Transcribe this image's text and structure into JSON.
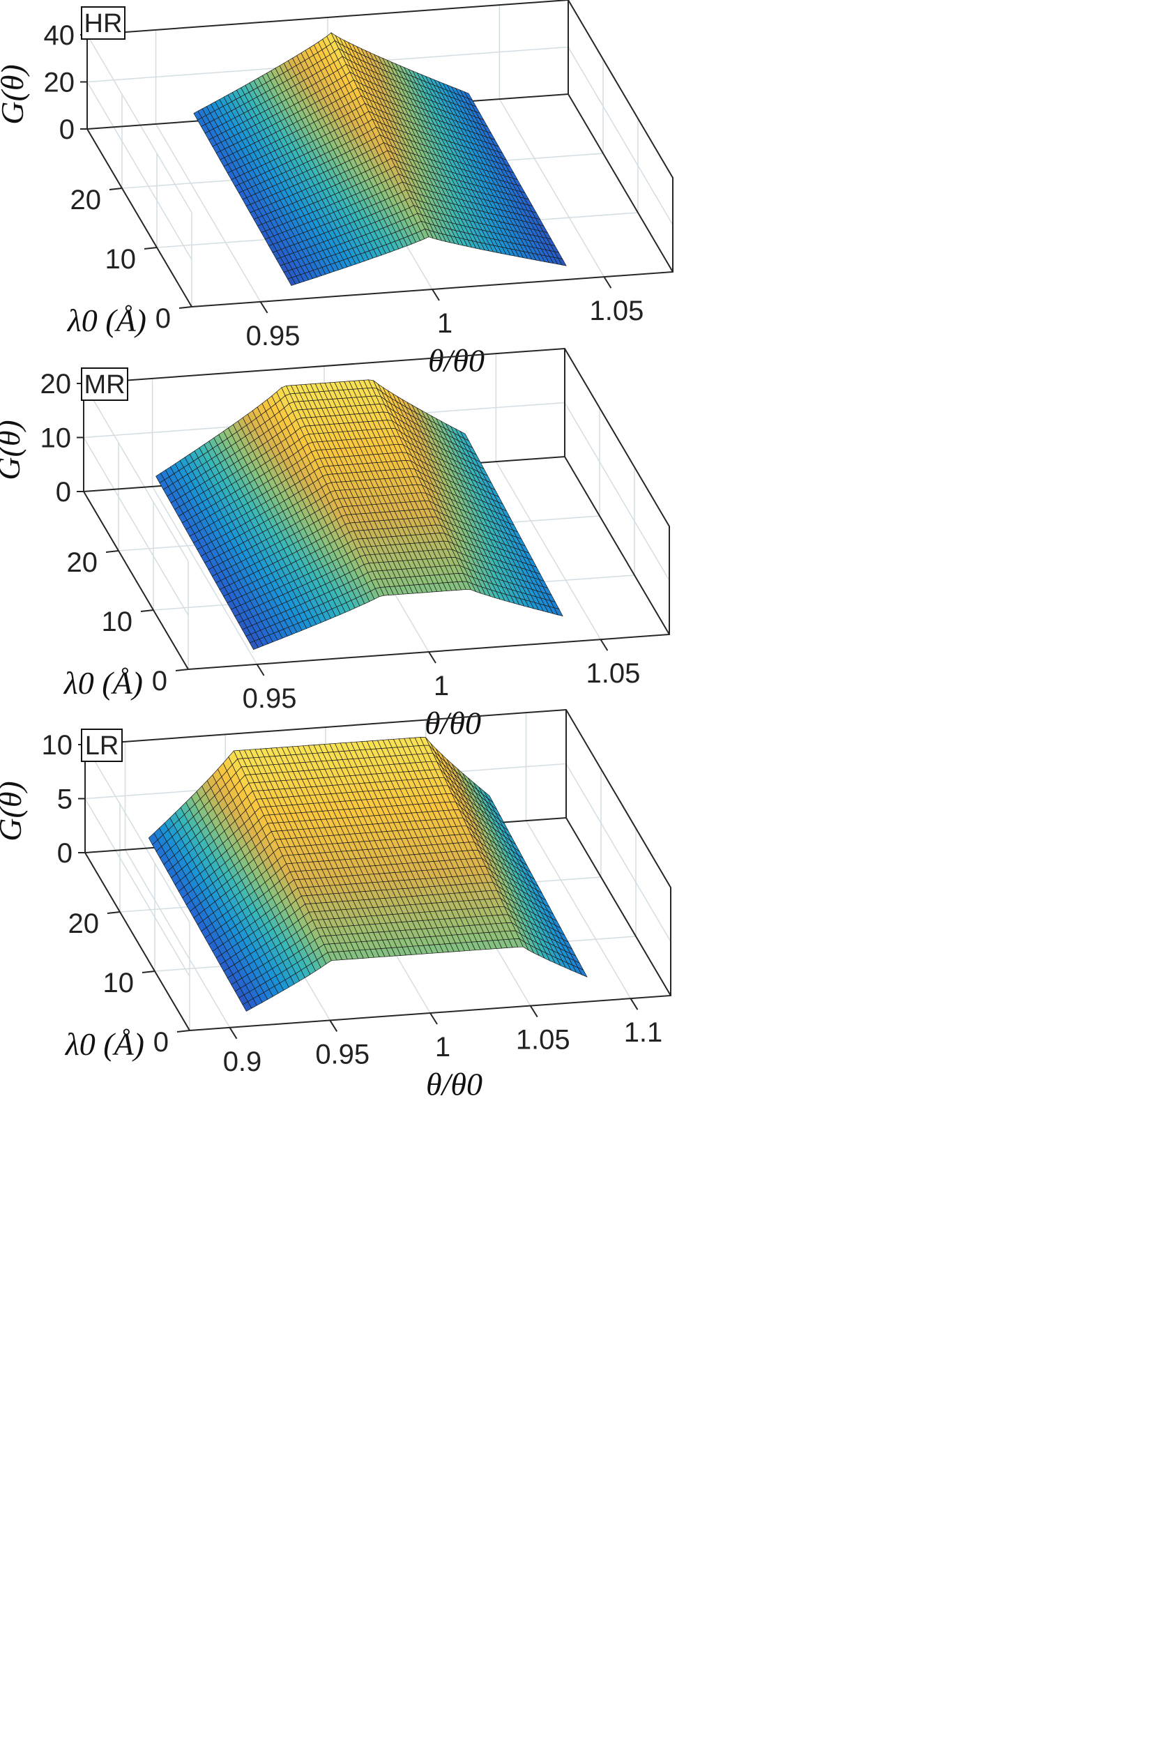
{
  "chart_data": [
    {
      "type": "surface3d",
      "panel_label": "HR",
      "xlabel": "θ/θ0",
      "ylabel": "λ0 (Å)",
      "zlabel": "G(θ)",
      "x_ticks": [
        "0.95",
        "1",
        "1.05"
      ],
      "x_tick_values": [
        0.95,
        1.0,
        1.05
      ],
      "y_ticks": [
        "0",
        "10",
        "20"
      ],
      "y_tick_values": [
        0,
        10,
        20
      ],
      "z_ticks": [
        "0",
        "20",
        "40"
      ],
      "z_tick_values": [
        0,
        20,
        40
      ],
      "xlim": [
        0.93,
        1.07
      ],
      "ylim": [
        0,
        30
      ],
      "zlim": [
        0,
        40
      ],
      "surface": {
        "x_range": [
          0.96,
          1.04
        ],
        "y_range": [
          1,
          29
        ],
        "flat_top_halfwidth": 0.0,
        "z_peak": 36,
        "z_edge": 6
      }
    },
    {
      "type": "surface3d",
      "panel_label": "MR",
      "xlabel": "θ/θ0",
      "ylabel": "λ0 (Å)",
      "zlabel": "G(θ)",
      "x_ticks": [
        "0.95",
        "1",
        "1.05"
      ],
      "x_tick_values": [
        0.95,
        1.0,
        1.05
      ],
      "y_ticks": [
        "0",
        "10",
        "20"
      ],
      "y_tick_values": [
        0,
        10,
        20
      ],
      "z_ticks": [
        "0",
        "10",
        "20"
      ],
      "z_tick_values": [
        0,
        10,
        20
      ],
      "xlim": [
        0.93,
        1.07
      ],
      "ylim": [
        0,
        30
      ],
      "zlim": [
        0,
        20
      ],
      "surface": {
        "x_range": [
          0.95,
          1.04
        ],
        "y_range": [
          1,
          29
        ],
        "flat_top_halfwidth": 0.013,
        "z_peak": 18,
        "z_edge": 3
      }
    },
    {
      "type": "surface3d",
      "panel_label": "LR",
      "xlabel": "θ/θ0",
      "ylabel": "λ0 (Å)",
      "zlabel": "G(θ)",
      "x_ticks": [
        "0.9",
        "0.95",
        "1",
        "1.05",
        "1.1"
      ],
      "x_tick_values": [
        0.9,
        0.95,
        1.0,
        1.05,
        1.1
      ],
      "y_ticks": [
        "0",
        "10",
        "20"
      ],
      "y_tick_values": [
        0,
        10,
        20
      ],
      "z_ticks": [
        "0",
        "5",
        "10"
      ],
      "z_tick_values": [
        0,
        5,
        10
      ],
      "xlim": [
        0.88,
        1.12
      ],
      "ylim": [
        0,
        30
      ],
      "zlim": [
        0,
        10
      ],
      "surface": {
        "x_range": [
          0.91,
          1.08
        ],
        "y_range": [
          1,
          29
        ],
        "flat_top_halfwidth": 0.048,
        "z_peak": 9,
        "z_edge": 1.5
      }
    }
  ]
}
